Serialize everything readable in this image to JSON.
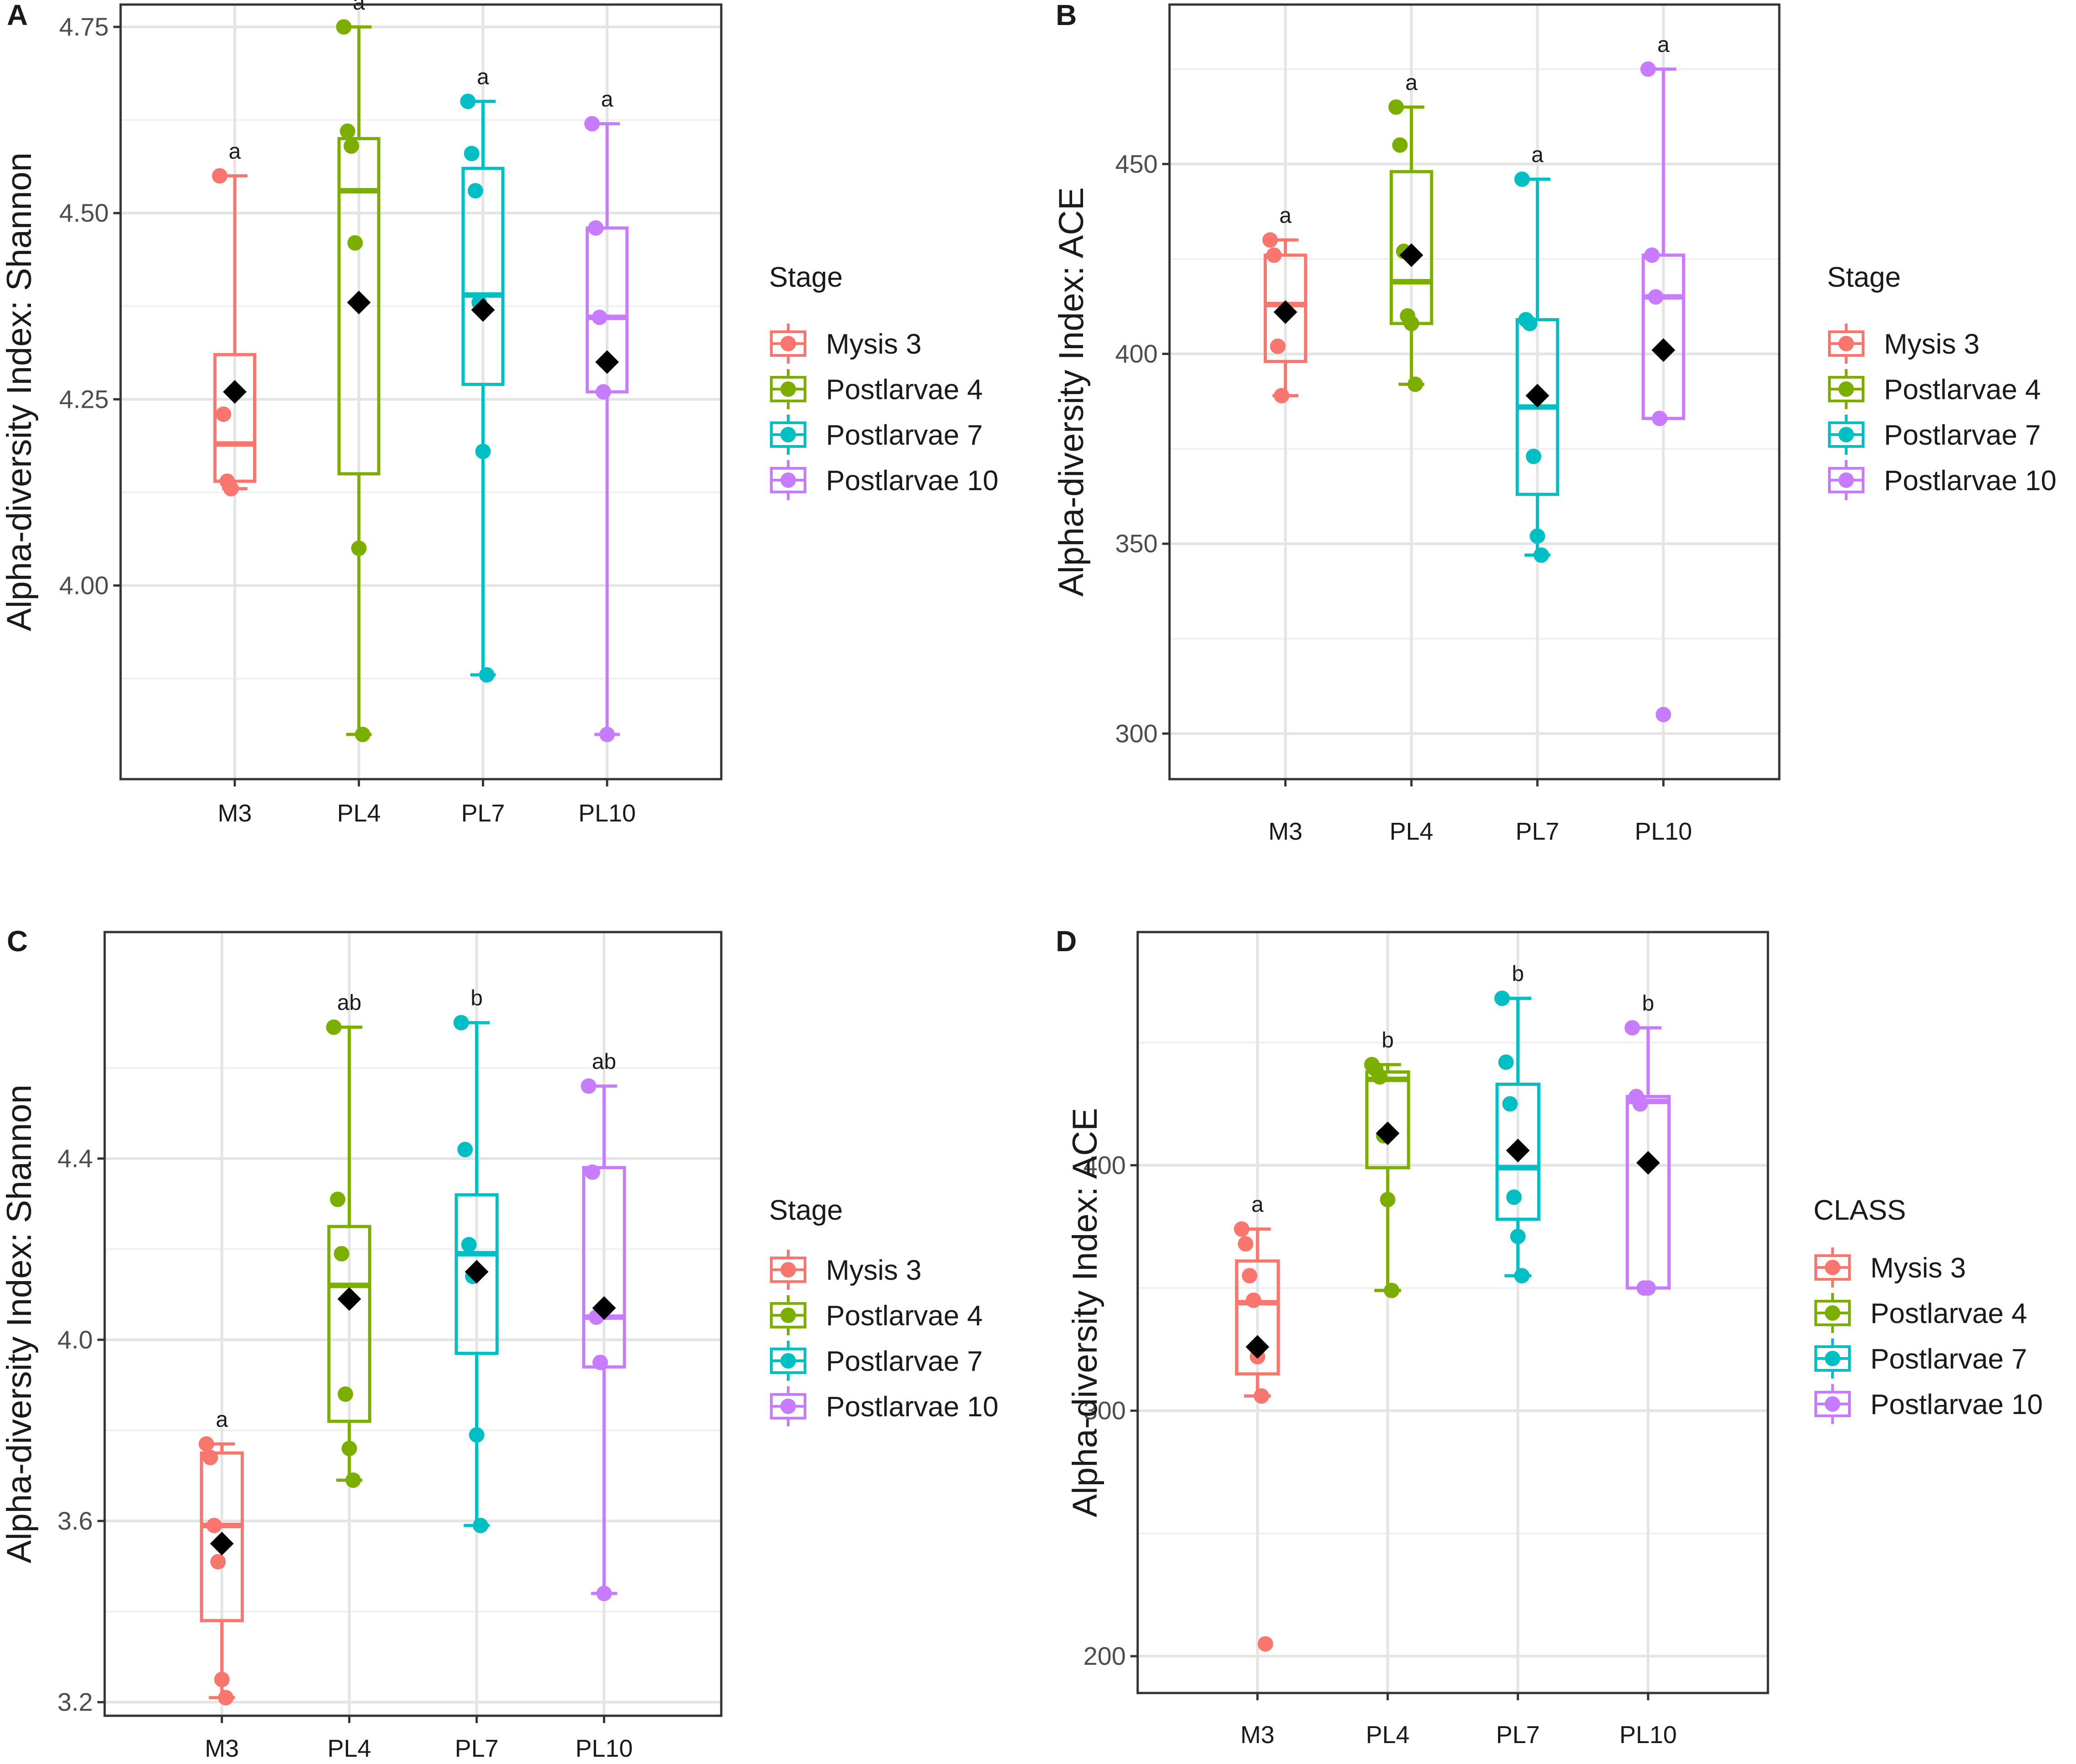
{
  "chart_data": [
    {
      "panel": "A",
      "type": "box",
      "ylabel": "Alpha-diversity Index: Shannon",
      "xlabel": "",
      "ylim": [
        3.74,
        4.78
      ],
      "yticks": [
        4.0,
        4.25,
        4.5,
        4.75
      ],
      "ytick_labels": [
        "4.00",
        "4.25",
        "4.50",
        "4.75"
      ],
      "legend": {
        "title": "Stage",
        "position": "right"
      },
      "categories": [
        "M3",
        "PL4",
        "PL7",
        "PL10"
      ],
      "groups": [
        {
          "name": "Mysis 3",
          "color": "#F8766D",
          "min": 4.13,
          "q1": 4.14,
          "median": 4.19,
          "q3": 4.31,
          "max": 4.55,
          "mean": 4.26,
          "points": [
            4.55,
            4.23,
            4.14,
            4.13
          ],
          "sig": "a"
        },
        {
          "name": "Postlarvae 4",
          "color": "#7CAE00",
          "min": 3.8,
          "q1": 4.15,
          "median": 4.53,
          "q3": 4.6,
          "max": 4.75,
          "mean": 4.38,
          "points": [
            4.75,
            4.61,
            4.59,
            4.46,
            4.05,
            3.8
          ],
          "sig": "a"
        },
        {
          "name": "Postlarvae 7",
          "color": "#00BFC4",
          "min": 3.88,
          "q1": 4.27,
          "median": 4.39,
          "q3": 4.56,
          "max": 4.65,
          "mean": 4.37,
          "points": [
            4.65,
            4.58,
            4.53,
            4.38,
            4.18,
            3.88
          ],
          "sig": "a"
        },
        {
          "name": "Postlarvae 10",
          "color": "#C77CFF",
          "min": 3.8,
          "q1": 4.26,
          "median": 4.36,
          "q3": 4.48,
          "max": 4.62,
          "mean": 4.3,
          "points": [
            4.62,
            4.48,
            4.36,
            4.26,
            3.8
          ],
          "sig": "a"
        }
      ]
    },
    {
      "panel": "B",
      "type": "box",
      "ylabel": "Alpha-diversity Index: ACE",
      "xlabel": "",
      "ylim": [
        288,
        492
      ],
      "yticks": [
        300,
        350,
        400,
        450
      ],
      "ytick_labels": [
        "300",
        "350",
        "400",
        "450"
      ],
      "legend": {
        "title": "Stage",
        "position": "right"
      },
      "categories": [
        "M3",
        "PL4",
        "PL7",
        "PL10"
      ],
      "groups": [
        {
          "name": "Mysis 3",
          "color": "#F8766D",
          "min": 389,
          "q1": 398,
          "median": 413,
          "q3": 426,
          "max": 430,
          "mean": 411,
          "points": [
            430,
            426,
            402,
            389
          ],
          "sig": "a"
        },
        {
          "name": "Postlarvae 4",
          "color": "#7CAE00",
          "min": 392,
          "q1": 408,
          "median": 419,
          "q3": 448,
          "max": 465,
          "mean": 426,
          "points": [
            465,
            455,
            427,
            410,
            408,
            392
          ],
          "sig": "a"
        },
        {
          "name": "Postlarvae 7",
          "color": "#00BFC4",
          "min": 347,
          "q1": 363,
          "median": 386,
          "q3": 409,
          "max": 446,
          "mean": 389,
          "points": [
            446,
            409,
            408,
            373,
            352,
            347
          ],
          "sig": "a"
        },
        {
          "name": "Postlarvae 10",
          "color": "#C77CFF",
          "min": 383,
          "q1": 383,
          "median": 415,
          "q3": 426,
          "max": 475,
          "mean": 401,
          "points": [
            475,
            426,
            415,
            383,
            305
          ],
          "sig": "a"
        }
      ]
    },
    {
      "panel": "C",
      "type": "box",
      "ylabel": "Alpha-diversity Index: Shannon",
      "xlabel": "",
      "ylim": [
        3.17,
        4.9
      ],
      "yticks": [
        3.2,
        3.6,
        4.0,
        4.4
      ],
      "ytick_labels": [
        "3.2",
        "3.6",
        "4.0",
        "4.4"
      ],
      "legend": {
        "title": "Stage",
        "position": "right"
      },
      "categories": [
        "M3",
        "PL4",
        "PL7",
        "PL10"
      ],
      "groups": [
        {
          "name": "Mysis 3",
          "color": "#F8766D",
          "min": 3.21,
          "q1": 3.38,
          "median": 3.59,
          "q3": 3.75,
          "max": 3.77,
          "mean": 3.55,
          "points": [
            3.77,
            3.74,
            3.59,
            3.51,
            3.25,
            3.21
          ],
          "sig": "a"
        },
        {
          "name": "Postlarvae 4",
          "color": "#7CAE00",
          "min": 3.69,
          "q1": 3.82,
          "median": 4.12,
          "q3": 4.25,
          "max": 4.69,
          "mean": 4.09,
          "points": [
            4.69,
            4.31,
            4.19,
            3.88,
            3.76,
            3.69
          ],
          "sig": "ab"
        },
        {
          "name": "Postlarvae 7",
          "color": "#00BFC4",
          "min": 3.59,
          "q1": 3.97,
          "median": 4.19,
          "q3": 4.32,
          "max": 4.7,
          "mean": 4.15,
          "points": [
            4.7,
            4.42,
            4.21,
            4.14,
            3.79,
            3.59
          ],
          "sig": "b"
        },
        {
          "name": "Postlarvae 10",
          "color": "#C77CFF",
          "min": 3.44,
          "q1": 3.94,
          "median": 4.05,
          "q3": 4.38,
          "max": 4.56,
          "mean": 4.07,
          "points": [
            4.56,
            4.37,
            4.05,
            3.95,
            3.44
          ],
          "sig": "ab"
        }
      ]
    },
    {
      "panel": "D",
      "type": "box",
      "ylabel": "Alpha-diversity Index: ACE",
      "xlabel": "",
      "ylim": [
        185,
        495
      ],
      "yticks": [
        200,
        300,
        400
      ],
      "ytick_labels": [
        "200",
        "300",
        "400"
      ],
      "legend": {
        "title": "CLASS",
        "position": "right"
      },
      "categories": [
        "M3",
        "PL4",
        "PL7",
        "PL10"
      ],
      "groups": [
        {
          "name": "Mysis 3",
          "color": "#F8766D",
          "min": 306,
          "q1": 315,
          "median": 344,
          "q3": 361,
          "max": 374,
          "mean": 326,
          "points": [
            374,
            368,
            355,
            345,
            322,
            306,
            205
          ],
          "sig": "a"
        },
        {
          "name": "Postlarvae 4",
          "color": "#7CAE00",
          "min": 349,
          "q1": 399,
          "median": 435,
          "q3": 438,
          "max": 441,
          "mean": 413,
          "points": [
            441,
            439,
            436,
            412,
            386,
            349
          ],
          "sig": "b"
        },
        {
          "name": "Postlarvae 7",
          "color": "#00BFC4",
          "min": 355,
          "q1": 378,
          "median": 399,
          "q3": 433,
          "max": 468,
          "mean": 406,
          "points": [
            468,
            442,
            425,
            387,
            371,
            355
          ],
          "sig": "b"
        },
        {
          "name": "Postlarvae 10",
          "color": "#C77CFF",
          "min": 350,
          "q1": 350,
          "median": 426,
          "q3": 428,
          "max": 456,
          "mean": 401,
          "points": [
            456,
            428,
            425,
            350,
            350
          ],
          "sig": "b"
        }
      ]
    }
  ]
}
